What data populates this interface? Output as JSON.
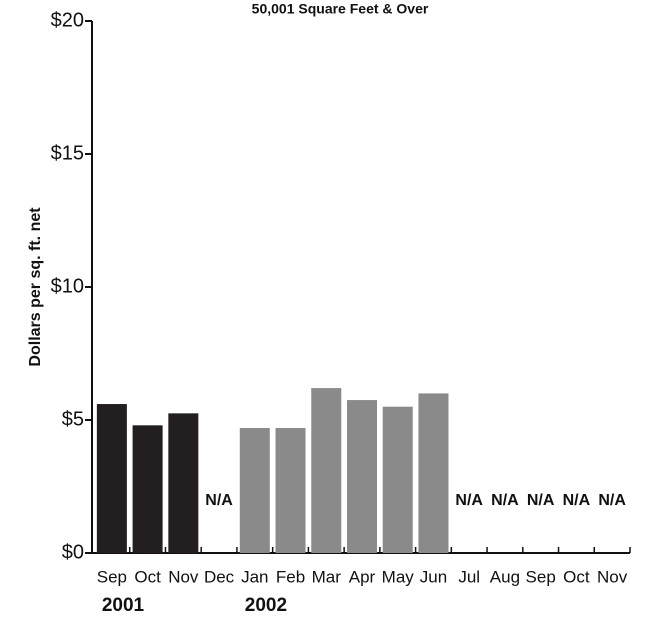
{
  "chart_data": {
    "type": "bar",
    "title": "50,001  Square Feet & Over",
    "y_label": "Dollars per sq. ft. net",
    "categories": [
      "Sep",
      "Oct",
      "Nov",
      "Dec",
      "Jan",
      "Feb",
      "Mar",
      "Apr",
      "May",
      "Jun",
      "Jul",
      "Aug",
      "Sep",
      "Oct",
      "Nov"
    ],
    "values": [
      5.6,
      4.8,
      5.25,
      null,
      4.7,
      4.7,
      6.2,
      5.75,
      5.5,
      6.0,
      null,
      null,
      null,
      null,
      null
    ],
    "value_labels": [
      null,
      null,
      null,
      "N/A",
      null,
      null,
      null,
      null,
      null,
      null,
      "N/A",
      "N/A",
      "N/A",
      "N/A",
      "N/A"
    ],
    "colors": [
      "#231f20",
      "#231f20",
      "#231f20",
      "#231f20",
      "#8a8a8a",
      "#8a8a8a",
      "#8a8a8a",
      "#8a8a8a",
      "#8a8a8a",
      "#8a8a8a",
      "#8a8a8a",
      "#8a8a8a",
      "#8a8a8a",
      "#8a8a8a",
      "#8a8a8a"
    ],
    "groups": [
      {
        "label": "2001",
        "start": 0
      },
      {
        "label": "2002",
        "start": 4
      }
    ],
    "ylim": [
      0,
      20
    ],
    "yticks": [
      {
        "value": 0,
        "label": "$0"
      },
      {
        "value": 5,
        "label": "$5"
      },
      {
        "value": 10,
        "label": "$10"
      },
      {
        "value": 15,
        "label": "$15"
      },
      {
        "value": 20,
        "label": "$20"
      }
    ],
    "grid": false
  }
}
